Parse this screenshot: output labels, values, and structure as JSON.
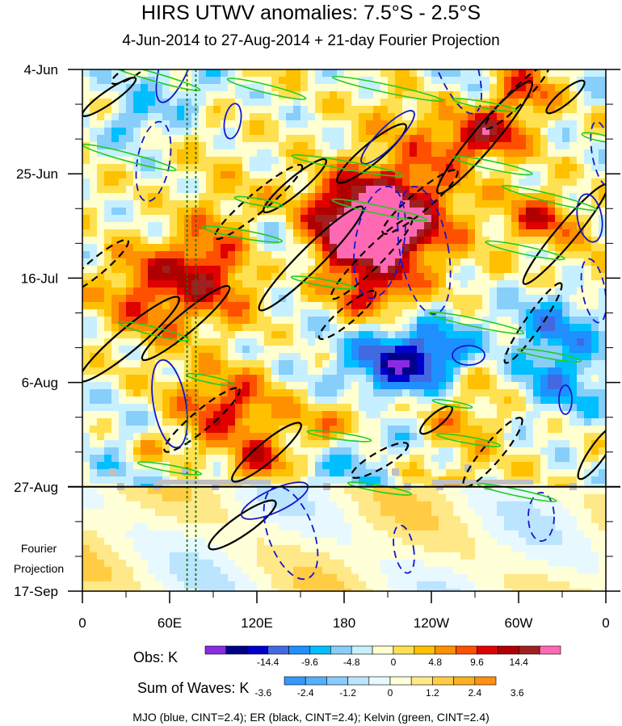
{
  "chart_data": {
    "type": "heatmap",
    "title": "HIRS UTWV anomalies: 7.5°S - 2.5°S",
    "subtitle": "4-Jun-2014 to 27-Aug-2014 + 21-day Fourier Projection",
    "x_ticks": [
      "0",
      "60E",
      "120E",
      "180",
      "120W",
      "60W",
      "0"
    ],
    "x_tick_lon": [
      0,
      60,
      120,
      180,
      240,
      300,
      360
    ],
    "xlim": [
      0,
      360
    ],
    "y_ticks": [
      "4-Jun",
      "25-Jun",
      "16-Jul",
      "6-Aug",
      "27-Aug",
      "17-Sep"
    ],
    "y_tick_days": [
      0,
      21,
      42,
      63,
      84,
      105
    ],
    "ylim_days": [
      0,
      105
    ],
    "obs_end_day": 84,
    "projection_label": [
      "Fourier",
      "Projection"
    ],
    "reference_lines_lon": [
      72,
      78
    ],
    "obs_legend": {
      "label": "Obs: K",
      "tick_labels": [
        "-14.4",
        "-9.6",
        "-4.8",
        "0",
        "4.8",
        "9.6",
        "14.4"
      ],
      "colors": [
        "#8a2be2",
        "#00008b",
        "#0000cd",
        "#4169e1",
        "#1e90ff",
        "#00bfff",
        "#87cefa",
        "#c6f0ff",
        "#ffffd0",
        "#ffe050",
        "#ffc000",
        "#ff9000",
        "#ff5000",
        "#e00000",
        "#b00000",
        "#a02020",
        "#ff69b4"
      ]
    },
    "waves_legend": {
      "label": "Sum of Waves: K",
      "tick_labels": [
        "-3.6",
        "-2.4",
        "-1.2",
        "0",
        "1.2",
        "2.4",
        "3.6"
      ],
      "colors": [
        "#3399ff",
        "#55b0ff",
        "#88ccff",
        "#bbe4ff",
        "#e8f8ff",
        "#ffffd8",
        "#ffe888",
        "#ffcc44",
        "#ffb020",
        "#ff9010"
      ]
    },
    "contours_note": "MJO (blue, CINT=2.4); ER (black, CINT=2.4); Kelvin (green, CINT=2.4)",
    "wave_contours": {
      "MJO": {
        "color": "#1515cc",
        "cint": 2.4
      },
      "ER": {
        "color": "#000000",
        "cint": 2.4
      },
      "Kelvin": {
        "color": "#22cc22",
        "cint": 2.4
      }
    }
  }
}
